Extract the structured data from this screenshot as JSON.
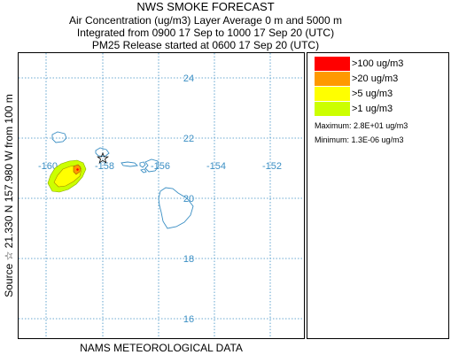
{
  "header": {
    "title": "NWS SMOKE FORECAST",
    "line1": "Air Concentration (ug/m3) Layer Average    0 m and  5000 m",
    "line2": "Integrated from 0900 17 Sep to 1000 17 Sep 20 (UTC)",
    "line3": "PM25 Release started at 0600 17 Sep 20 (UTC)"
  },
  "side_label": "Source ☆  21.330  N 157.980  W    from  100 m",
  "footer": "NAMS METEOROLOGICAL DATA",
  "map": {
    "lat_labels": [
      "24",
      "22",
      "20",
      "18",
      "16"
    ],
    "lon_labels": [
      "-160",
      "-158",
      "-156",
      "-154",
      "-152"
    ],
    "source_marker": "star-icon"
  },
  "legend": {
    "items": [
      {
        "label": ">100 ug/m3",
        "color": "#ff0000"
      },
      {
        "label": ">20 ug/m3",
        "color": "#ff9900"
      },
      {
        "label": ">5 ug/m3",
        "color": "#ffff00"
      },
      {
        "label": ">1 ug/m3",
        "color": "#ccff00"
      }
    ],
    "maximum": "Maximum: 2.8E+01 ug/m3",
    "minimum": "Minimum: 1.3E-06 ug/m3"
  },
  "colors": {
    "grid": "#3b8fc4",
    "coast": "#3b8fc4",
    "plume_outline": "#a38a00"
  }
}
